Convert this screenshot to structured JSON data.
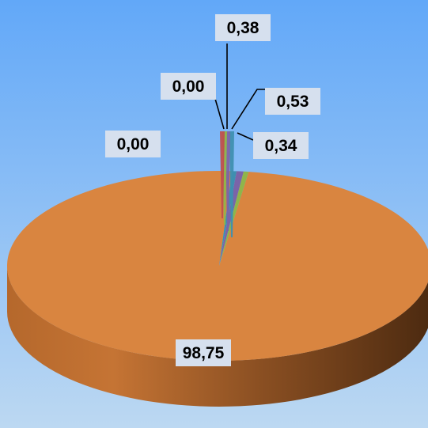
{
  "chart_data": {
    "type": "pie",
    "three_d": true,
    "legend": "none",
    "slices": [
      {
        "label": "98,75",
        "value": 98.75,
        "color": "#d98540"
      },
      {
        "label": "0,34",
        "value": 0.34,
        "color": "#3f8fb0"
      },
      {
        "label": "0,53",
        "value": 0.53,
        "color": "#7b64a8"
      },
      {
        "label": "0,38",
        "value": 0.38,
        "color": "#8fb54a"
      },
      {
        "label": "0,00",
        "value": 0.0,
        "color": "#c0504d"
      },
      {
        "label": "0,00",
        "value": 0.0,
        "color": "#4f81bd"
      }
    ]
  },
  "colors": {
    "background_top": "#62a8f8",
    "background_bottom": "#bcd8f2",
    "label_box": "#d6e0ee"
  }
}
